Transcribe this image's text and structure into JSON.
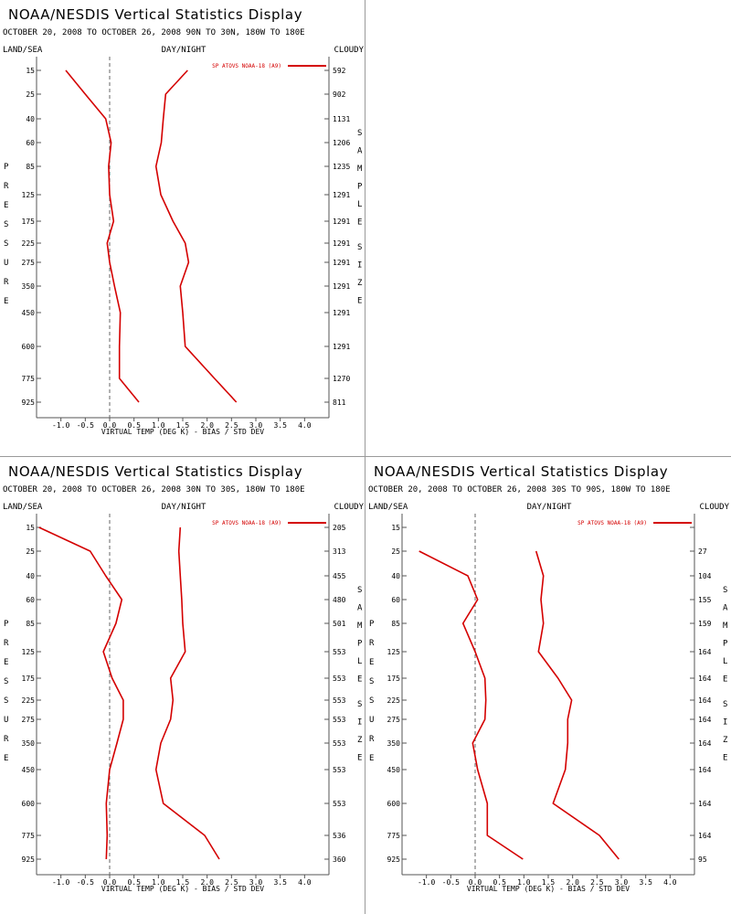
{
  "header": {
    "land_sea": "LAND/SEA",
    "day_night": "DAY/NIGHT",
    "cloudy": "CLOUDY",
    "pressure_label": "PRESSURE",
    "sample_label": "SAMPLE SIZE",
    "xlabel": "VIRTUAL TEMP (DEG K) - BIAS / STD DEV"
  },
  "colors": {
    "series": "#d40000",
    "axis": "#555555",
    "zero_line": "#666666"
  },
  "chart_data": [
    {
      "type": "line",
      "title": "NOAA/NESDIS Vertical Statistics Display",
      "subtitle": "OCTOBER 20, 2008 TO OCTOBER 26, 2008 90N TO 30N, 180W TO 180E",
      "legend": "SP ATOVS NOAA-18 (A9)",
      "pressure_levels": [
        "15",
        "25",
        "40",
        "60",
        "85",
        "125",
        "175",
        "225",
        "275",
        "350",
        "450",
        "600",
        "775",
        "925"
      ],
      "sample_size": [
        "592",
        "902",
        "1131",
        "1206",
        "1235",
        "1291",
        "1291",
        "1291",
        "1291",
        "1291",
        "1291",
        "1291",
        "1270",
        "811"
      ],
      "x_ticks": [
        "-1.0",
        "-0.5",
        "0.0",
        "0.5",
        "1.0",
        "1.5",
        "2.0",
        "2.5",
        "3.0",
        "3.5",
        "4.0"
      ],
      "xlim": [
        -1.5,
        4.5
      ],
      "series": [
        {
          "name": "bias",
          "values": [
            -0.9,
            -0.5,
            -0.08,
            0.03,
            -0.02,
            0.0,
            0.08,
            -0.05,
            0.0,
            0.1,
            0.22,
            0.2,
            0.2,
            0.6
          ]
        },
        {
          "name": "std dev",
          "values": [
            1.6,
            1.15,
            1.1,
            1.06,
            0.95,
            1.05,
            1.3,
            1.55,
            1.62,
            1.45,
            1.5,
            1.55,
            2.15,
            2.6
          ]
        }
      ]
    },
    {
      "type": "line",
      "title": "NOAA/NESDIS Vertical Statistics Display",
      "subtitle": "OCTOBER 20, 2008 TO OCTOBER 26, 2008 30N TO 30S, 180W TO 180E",
      "legend": "SP ATOVS NOAA-18 (A9)",
      "pressure_levels": [
        "15",
        "25",
        "40",
        "60",
        "85",
        "125",
        "175",
        "225",
        "275",
        "350",
        "450",
        "600",
        "775",
        "925"
      ],
      "sample_size": [
        "205",
        "313",
        "455",
        "480",
        "501",
        "553",
        "553",
        "553",
        "553",
        "553",
        "553",
        "553",
        "536",
        "360"
      ],
      "x_ticks": [
        "-1.0",
        "-0.5",
        "0.0",
        "0.5",
        "1.0",
        "1.5",
        "2.0",
        "2.5",
        "3.0",
        "3.5",
        "4.0"
      ],
      "xlim": [
        -1.5,
        4.5
      ],
      "series": [
        {
          "name": "bias",
          "values": [
            -1.45,
            -0.4,
            -0.08,
            0.25,
            0.13,
            -0.13,
            0.05,
            0.28,
            0.28,
            0.15,
            0.0,
            -0.07,
            -0.05,
            -0.07
          ]
        },
        {
          "name": "std dev",
          "values": [
            1.45,
            1.42,
            1.45,
            1.48,
            1.5,
            1.55,
            1.25,
            1.3,
            1.25,
            1.05,
            0.95,
            1.1,
            1.95,
            2.25
          ]
        }
      ]
    },
    {
      "type": "line",
      "title": "NOAA/NESDIS Vertical Statistics Display",
      "subtitle": "OCTOBER 20, 2008 TO OCTOBER 26, 2008 30S TO 90S, 180W TO 180E",
      "legend": "SP ATOVS NOAA-18 (A9)",
      "pressure_levels": [
        "15",
        "25",
        "40",
        "60",
        "85",
        "125",
        "175",
        "225",
        "275",
        "350",
        "450",
        "600",
        "775",
        "925"
      ],
      "sample_size": [
        "",
        "27",
        "104",
        "155",
        "159",
        "164",
        "164",
        "164",
        "164",
        "164",
        "164",
        "164",
        "164",
        "95"
      ],
      "x_ticks": [
        "-1.0",
        "-0.5",
        "0.0",
        "0.5",
        "1.0",
        "1.5",
        "2.0",
        "2.5",
        "3.0",
        "3.5",
        "4.0"
      ],
      "xlim": [
        -1.5,
        4.5
      ],
      "series": [
        {
          "name": "bias",
          "values": [
            null,
            -1.15,
            -0.15,
            0.05,
            -0.25,
            0.0,
            0.2,
            0.22,
            0.2,
            -0.05,
            0.05,
            0.25,
            0.25,
            0.98
          ]
        },
        {
          "name": "std dev",
          "values": [
            null,
            1.25,
            1.4,
            1.35,
            1.4,
            1.3,
            1.7,
            1.98,
            1.9,
            1.9,
            1.85,
            1.6,
            2.55,
            2.95
          ]
        }
      ]
    }
  ]
}
